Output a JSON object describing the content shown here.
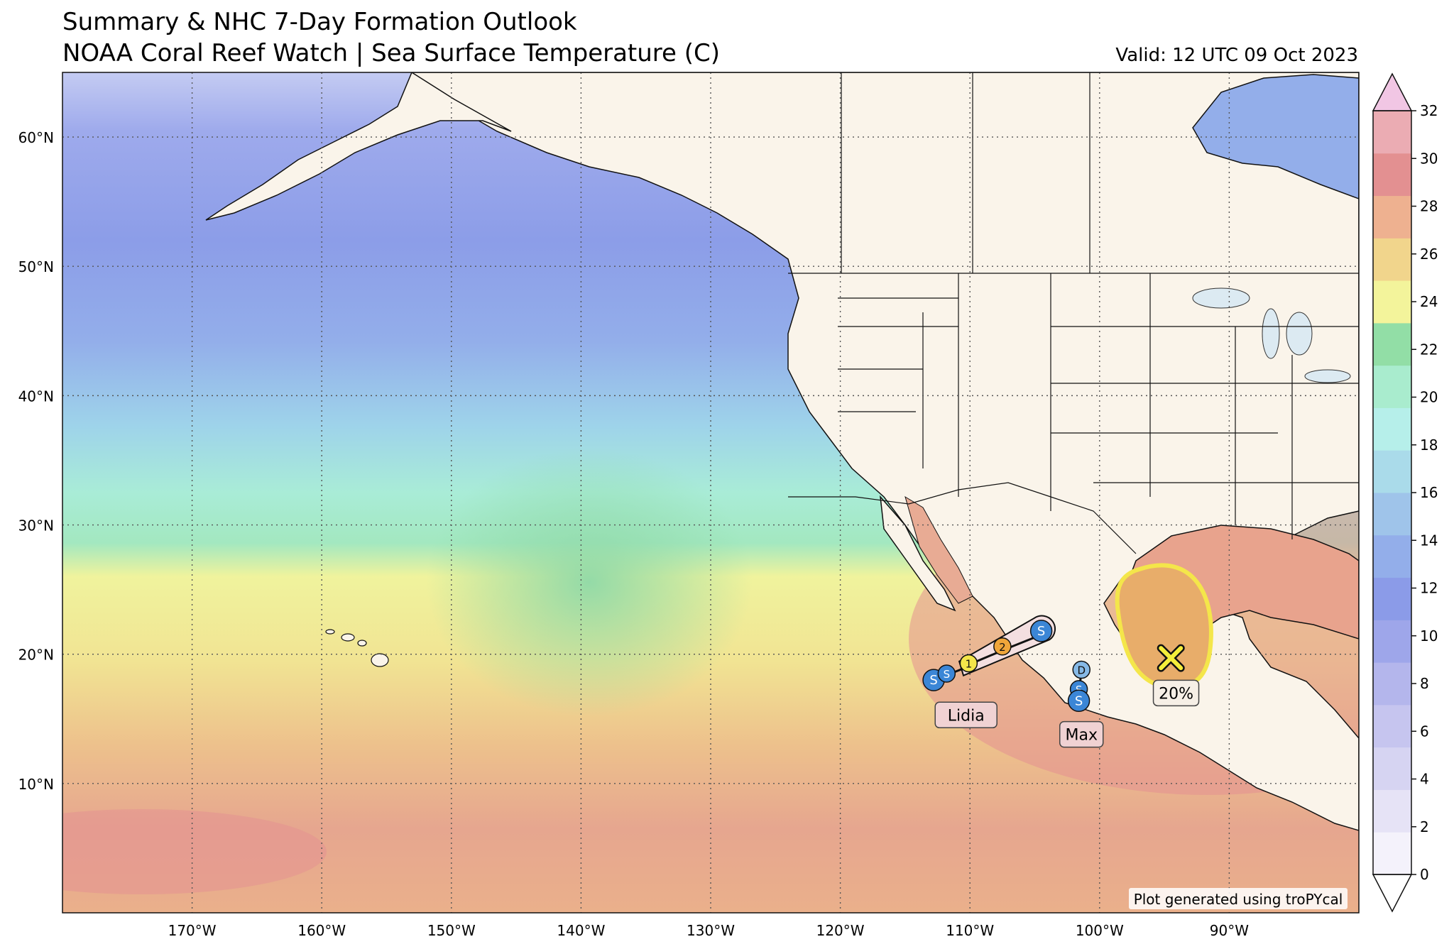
{
  "header": {
    "title_line1": "Summary & NHC 7-Day Formation Outlook",
    "title_line2": "NOAA Coral Reef Watch | Sea Surface Temperature (C)",
    "valid": "Valid: 12 UTC 09 Oct 2023"
  },
  "map": {
    "lon_range": [
      -180,
      -80
    ],
    "lat_range": [
      0,
      65
    ],
    "lat_labels": [
      "10°N",
      "20°N",
      "30°N",
      "40°N",
      "50°N",
      "60°N"
    ],
    "lat_values": [
      10,
      20,
      30,
      40,
      50,
      60
    ],
    "lon_labels": [
      "170°W",
      "160°W",
      "150°W",
      "140°W",
      "130°W",
      "120°W",
      "110°W",
      "100°W",
      "90°W"
    ],
    "lon_values": [
      -170,
      -160,
      -150,
      -140,
      -130,
      -120,
      -110,
      -100,
      -90
    ]
  },
  "colorbar": {
    "ticks": [
      "0",
      "2",
      "4",
      "6",
      "8",
      "10",
      "12",
      "14",
      "16",
      "18",
      "20",
      "22",
      "24",
      "26",
      "28",
      "30",
      "32"
    ],
    "tick_values": [
      0,
      2,
      4,
      6,
      8,
      10,
      12,
      14,
      16,
      18,
      20,
      22,
      24,
      26,
      28,
      30,
      32
    ],
    "colors": [
      "#ffffff",
      "#f4f2fb",
      "#e6e3f6",
      "#d6d4f2",
      "#c6c5ef",
      "#b4b6ec",
      "#9ea6ea",
      "#8b9be8",
      "#93aeea",
      "#9fc4ea",
      "#aadbea",
      "#b6efea",
      "#a9ecce",
      "#92dea6",
      "#f3f49b",
      "#f1d58c",
      "#eeb190",
      "#e39091",
      "#ebacb3",
      "#f1c6e4"
    ]
  },
  "storms": [
    {
      "name": "Lidia",
      "track": [
        [
          -112.5,
          18.1
        ],
        [
          -111.5,
          18.5
        ],
        [
          -110.5,
          18.9
        ],
        [
          -109.6,
          19.4
        ],
        [
          -107,
          20.5
        ],
        [
          -105,
          21.3
        ],
        [
          -104.4,
          21.9
        ]
      ],
      "points": [
        {
          "lon": -112.8,
          "lat": 18.0,
          "label": "S",
          "color": "#3b86d6"
        },
        {
          "lon": -111.8,
          "lat": 18.5,
          "label": "S",
          "color": "#3b86d6"
        },
        {
          "lon": -110.1,
          "lat": 19.3,
          "label": "1",
          "color": "#f4e64a"
        },
        {
          "lon": -107.5,
          "lat": 20.6,
          "label": "2",
          "color": "#f0a63a"
        },
        {
          "lon": -104.5,
          "lat": 21.8,
          "label": "S",
          "color": "#3b86d6"
        }
      ],
      "label_lon": -110.3,
      "label_lat": 15.3
    },
    {
      "name": "Max",
      "track": [
        [
          -101.4,
          18.8
        ],
        [
          -101.6,
          16.8
        ]
      ],
      "points": [
        {
          "lon": -101.4,
          "lat": 18.8,
          "label": "D",
          "color": "#86b9e6"
        },
        {
          "lon": -101.6,
          "lat": 17.3,
          "label": "S",
          "color": "#3b86d6"
        },
        {
          "lon": -101.6,
          "lat": 16.4,
          "label": "S",
          "color": "#3b86d6"
        }
      ],
      "label_lon": -101.4,
      "label_lat": 13.8
    }
  ],
  "outlook": {
    "probability": "20%",
    "center_lon": -94.5,
    "center_lat": 19.7,
    "label_lon": -94.1,
    "label_lat": 17.0
  },
  "credit": "Plot generated using troPYcal"
}
